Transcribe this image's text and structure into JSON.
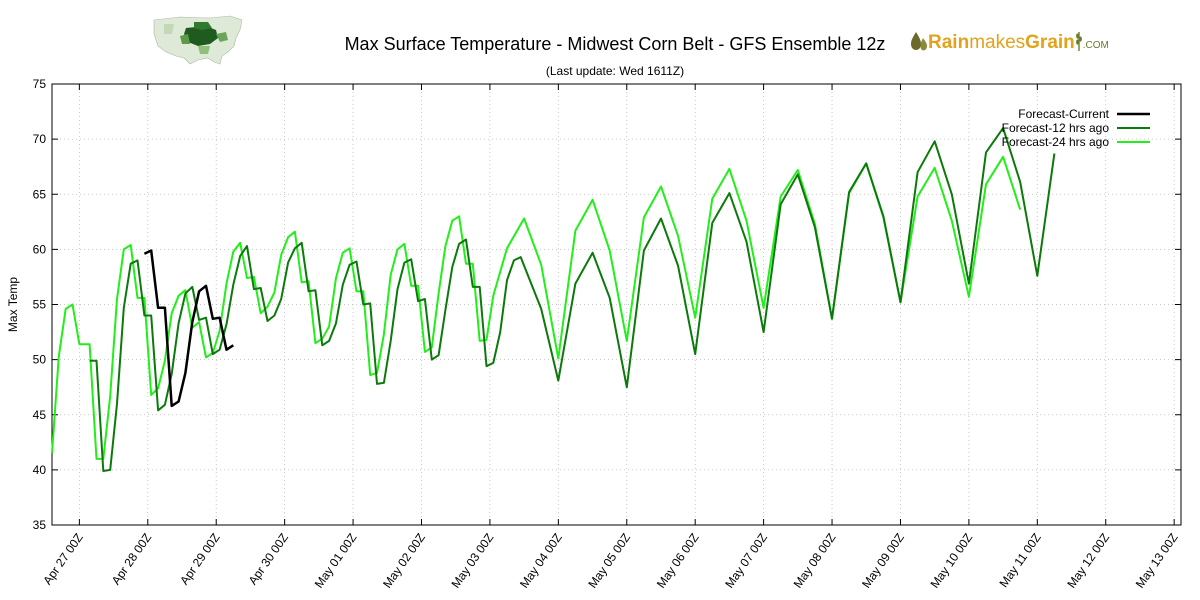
{
  "header": {
    "title": "Max Surface Temperature - Midwest Corn Belt - GFS Ensemble 12z",
    "subtitle": "(Last update: Wed 1611Z)",
    "logo": {
      "part1": "Rain",
      "part2": "makes",
      "part3": "Grain",
      "suffix": ".COM"
    }
  },
  "chart_data": {
    "type": "line",
    "title": "Max Surface Temperature - Midwest Corn Belt - GFS Ensemble 12z",
    "xlabel": "",
    "ylabel": "Max Temp",
    "ylim": [
      35,
      75
    ],
    "yticks": [
      35,
      40,
      45,
      50,
      55,
      60,
      65,
      70,
      75
    ],
    "x_ticks": [
      "Apr 27 00Z",
      "Apr 28 00Z",
      "Apr 29 00Z",
      "Apr 30 00Z",
      "May 01 00Z",
      "May 02 00Z",
      "May 03 00Z",
      "May 04 00Z",
      "May 05 00Z",
      "May 06 00Z",
      "May 07 00Z",
      "May 08 00Z",
      "May 09 00Z",
      "May 10 00Z",
      "May 11 00Z",
      "May 12 00Z",
      "May 13 00Z"
    ],
    "x_unit": "days since Apr 27 00Z",
    "xlim": [
      -0.4,
      16.1
    ],
    "grid": true,
    "legend_position": "top-right",
    "series": [
      {
        "name": "Forecast-Current",
        "color": "#000000",
        "width": 2.5,
        "points": [
          [
            0.95,
            59.6
          ],
          [
            1.05,
            59.9
          ],
          [
            1.15,
            54.7
          ],
          [
            1.25,
            54.7
          ],
          [
            1.35,
            45.8
          ],
          [
            1.45,
            46.2
          ],
          [
            1.55,
            48.8
          ],
          [
            1.65,
            53.4
          ],
          [
            1.75,
            56.2
          ],
          [
            1.85,
            56.7
          ],
          [
            1.95,
            53.7
          ],
          [
            2.05,
            53.8
          ],
          [
            2.15,
            50.9
          ],
          [
            2.25,
            51.3
          ]
        ]
      },
      {
        "name": "Forecast-12 hrs ago",
        "color": "#0b7a0b",
        "width": 2,
        "points": [
          [
            0.15,
            49.9
          ],
          [
            0.25,
            49.9
          ],
          [
            0.35,
            39.9
          ],
          [
            0.45,
            40.0
          ],
          [
            0.55,
            46.0
          ],
          [
            0.65,
            54.7
          ],
          [
            0.75,
            58.7
          ],
          [
            0.85,
            59.0
          ],
          [
            0.95,
            54.0
          ],
          [
            1.05,
            54.0
          ],
          [
            1.15,
            45.4
          ],
          [
            1.25,
            45.9
          ],
          [
            1.35,
            48.7
          ],
          [
            1.45,
            53.3
          ],
          [
            1.55,
            56.0
          ],
          [
            1.65,
            56.6
          ],
          [
            1.75,
            53.6
          ],
          [
            1.85,
            53.8
          ],
          [
            1.95,
            50.5
          ],
          [
            2.05,
            50.9
          ],
          [
            2.15,
            53.2
          ],
          [
            2.25,
            56.8
          ],
          [
            2.35,
            59.4
          ],
          [
            2.45,
            60.3
          ],
          [
            2.55,
            56.4
          ],
          [
            2.65,
            56.5
          ],
          [
            2.75,
            53.5
          ],
          [
            2.85,
            54.0
          ],
          [
            2.95,
            55.5
          ],
          [
            3.05,
            58.8
          ],
          [
            3.15,
            60.1
          ],
          [
            3.25,
            60.6
          ],
          [
            3.35,
            56.2
          ],
          [
            3.45,
            56.3
          ],
          [
            3.55,
            51.3
          ],
          [
            3.65,
            51.7
          ],
          [
            3.75,
            53.3
          ],
          [
            3.85,
            56.8
          ],
          [
            3.95,
            58.6
          ],
          [
            4.05,
            58.9
          ],
          [
            4.15,
            55.0
          ],
          [
            4.25,
            55.1
          ],
          [
            4.35,
            47.8
          ],
          [
            4.45,
            47.9
          ],
          [
            4.55,
            51.7
          ],
          [
            4.65,
            56.4
          ],
          [
            4.75,
            58.8
          ],
          [
            4.85,
            59.1
          ],
          [
            4.95,
            55.3
          ],
          [
            5.05,
            55.5
          ],
          [
            5.15,
            50.0
          ],
          [
            5.25,
            50.4
          ],
          [
            5.35,
            54.5
          ],
          [
            5.45,
            58.4
          ],
          [
            5.55,
            60.5
          ],
          [
            5.65,
            60.9
          ],
          [
            5.75,
            56.6
          ],
          [
            5.85,
            56.6
          ],
          [
            5.95,
            49.4
          ],
          [
            6.05,
            49.7
          ],
          [
            6.15,
            52.5
          ],
          [
            6.25,
            57.2
          ],
          [
            6.35,
            59.0
          ],
          [
            6.45,
            59.3
          ],
          [
            6.75,
            54.6
          ],
          [
            7.0,
            48.1
          ],
          [
            7.25,
            56.9
          ],
          [
            7.5,
            59.7
          ],
          [
            7.75,
            55.6
          ],
          [
            8.0,
            47.5
          ],
          [
            8.25,
            59.9
          ],
          [
            8.5,
            62.8
          ],
          [
            8.75,
            58.5
          ],
          [
            9.0,
            50.5
          ],
          [
            9.25,
            62.4
          ],
          [
            9.5,
            65.1
          ],
          [
            9.75,
            60.7
          ],
          [
            10.0,
            52.5
          ],
          [
            10.25,
            64.1
          ],
          [
            10.5,
            66.8
          ],
          [
            10.75,
            62.0
          ],
          [
            11.0,
            53.7
          ],
          [
            11.25,
            65.2
          ],
          [
            11.5,
            67.8
          ],
          [
            11.75,
            63.0
          ],
          [
            12.0,
            55.2
          ],
          [
            12.25,
            67.0
          ],
          [
            12.5,
            69.8
          ],
          [
            12.75,
            65.0
          ],
          [
            13.0,
            56.9
          ],
          [
            13.25,
            68.8
          ],
          [
            13.5,
            71.0
          ],
          [
            13.75,
            66.1
          ],
          [
            14.0,
            57.6
          ],
          [
            14.25,
            68.7
          ]
        ]
      },
      {
        "name": "Forecast-24 hrs ago",
        "color": "#22ee1a",
        "width": 2,
        "points": [
          [
            -0.4,
            41.5
          ],
          [
            -0.3,
            50.3
          ],
          [
            -0.2,
            54.6
          ],
          [
            -0.1,
            55.0
          ],
          [
            0.0,
            51.4
          ],
          [
            0.15,
            51.4
          ],
          [
            0.25,
            41.0
          ],
          [
            0.35,
            41.0
          ],
          [
            0.45,
            46.7
          ],
          [
            0.55,
            55.5
          ],
          [
            0.65,
            60.0
          ],
          [
            0.75,
            60.4
          ],
          [
            0.85,
            55.6
          ],
          [
            0.95,
            55.6
          ],
          [
            1.05,
            46.8
          ],
          [
            1.15,
            47.4
          ],
          [
            1.25,
            49.9
          ],
          [
            1.35,
            54.2
          ],
          [
            1.45,
            55.8
          ],
          [
            1.55,
            56.3
          ],
          [
            1.65,
            52.9
          ],
          [
            1.75,
            53.4
          ],
          [
            1.85,
            50.2
          ],
          [
            1.95,
            50.6
          ],
          [
            2.05,
            52.6
          ],
          [
            2.15,
            56.9
          ],
          [
            2.25,
            59.8
          ],
          [
            2.35,
            60.6
          ],
          [
            2.45,
            57.4
          ],
          [
            2.55,
            57.5
          ],
          [
            2.65,
            54.2
          ],
          [
            2.75,
            54.8
          ],
          [
            2.85,
            56.1
          ],
          [
            2.95,
            59.5
          ],
          [
            3.05,
            61.1
          ],
          [
            3.15,
            61.6
          ],
          [
            3.25,
            57.0
          ],
          [
            3.35,
            57.1
          ],
          [
            3.45,
            51.5
          ],
          [
            3.55,
            51.9
          ],
          [
            3.65,
            53.0
          ],
          [
            3.75,
            57.4
          ],
          [
            3.85,
            59.7
          ],
          [
            3.95,
            60.1
          ],
          [
            4.05,
            56.2
          ],
          [
            4.15,
            56.2
          ],
          [
            4.25,
            48.6
          ],
          [
            4.35,
            48.8
          ],
          [
            4.45,
            52.3
          ],
          [
            4.55,
            57.7
          ],
          [
            4.65,
            60.0
          ],
          [
            4.75,
            60.5
          ],
          [
            4.85,
            56.7
          ],
          [
            4.95,
            56.7
          ],
          [
            5.05,
            50.7
          ],
          [
            5.15,
            51.1
          ],
          [
            5.25,
            56.0
          ],
          [
            5.35,
            60.3
          ],
          [
            5.45,
            62.6
          ],
          [
            5.55,
            63.0
          ],
          [
            5.65,
            58.7
          ],
          [
            5.75,
            58.7
          ],
          [
            5.85,
            51.7
          ],
          [
            5.95,
            51.8
          ],
          [
            6.05,
            55.8
          ],
          [
            6.25,
            60.1
          ],
          [
            6.5,
            62.8
          ],
          [
            6.75,
            58.6
          ],
          [
            7.0,
            50.1
          ],
          [
            7.25,
            61.7
          ],
          [
            7.5,
            64.5
          ],
          [
            7.75,
            59.9
          ],
          [
            8.0,
            51.7
          ],
          [
            8.25,
            62.9
          ],
          [
            8.5,
            65.7
          ],
          [
            8.75,
            61.2
          ],
          [
            9.0,
            53.8
          ],
          [
            9.25,
            64.6
          ],
          [
            9.5,
            67.3
          ],
          [
            9.75,
            62.6
          ],
          [
            10.0,
            54.7
          ],
          [
            10.25,
            64.8
          ],
          [
            10.5,
            67.2
          ],
          [
            10.75,
            62.3
          ],
          [
            11.0,
            53.7
          ],
          [
            11.25,
            65.1
          ],
          [
            11.5,
            67.8
          ],
          [
            11.75,
            62.9
          ],
          [
            12.0,
            55.2
          ],
          [
            12.25,
            64.8
          ],
          [
            12.5,
            67.4
          ],
          [
            12.75,
            62.6
          ],
          [
            13.0,
            55.7
          ],
          [
            13.25,
            65.9
          ],
          [
            13.5,
            68.4
          ],
          [
            13.75,
            63.6
          ]
        ]
      }
    ]
  }
}
